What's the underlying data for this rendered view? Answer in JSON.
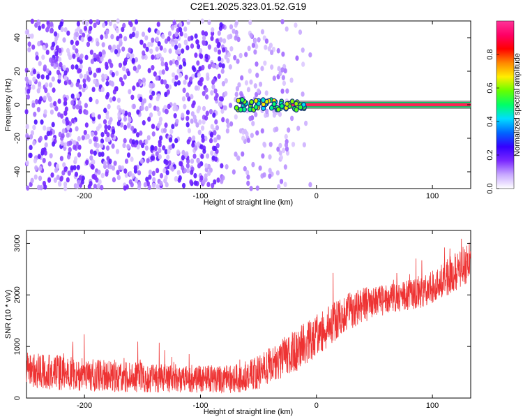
{
  "chart_data": [
    {
      "type": "heatmap",
      "title": "C2E1.2025.323.01.52.G19",
      "xlabel": "Height of straight line (km)",
      "ylabel": "Frequency (Hz)",
      "xlim": [
        -250,
        133
      ],
      "ylim": [
        -50,
        50
      ],
      "xticks": [
        -200,
        -100,
        0,
        100
      ],
      "yticks": [
        -40,
        -20,
        0,
        20,
        40
      ],
      "colorbar": {
        "label": "Normalized spectral amplitude",
        "range": [
          0,
          1
        ],
        "ticks": [
          "0.0",
          "0.2",
          "0.4",
          "0.6",
          "0.8"
        ],
        "colors": [
          "#ffffff",
          "#c8a8ff",
          "#7a28ff",
          "#3300ff",
          "#0066ff",
          "#00ddff",
          "#00ff66",
          "#66ff00",
          "#ffee00",
          "#ff8800",
          "#ff0000",
          "#ff0066",
          "#ff3399"
        ]
      },
      "features": {
        "noise_region_x": [
          -250,
          -25
        ],
        "noise_color_value": 0.15,
        "signal_line": {
          "x": [
            -70,
            133
          ],
          "frequency": 0,
          "value": 0.95
        },
        "transition_region_x": [
          -70,
          -25
        ]
      },
      "grid": false
    },
    {
      "type": "line",
      "xlabel": "Height of straight line (km)",
      "ylabel": "SNR (10 * v/v)",
      "xlim": [
        -250,
        133
      ],
      "ylim": [
        0,
        3250
      ],
      "xticks": [
        -200,
        -100,
        0,
        100
      ],
      "yticks": [
        0,
        1000,
        2000,
        3000
      ],
      "series": [
        {
          "color": "#ee3333",
          "x": [
            -250,
            -225,
            -200,
            -175,
            -150,
            -125,
            -100,
            -85,
            -70,
            -60,
            -50,
            -40,
            -30,
            -20,
            -10,
            0,
            10,
            20,
            30,
            40,
            50,
            60,
            70,
            80,
            90,
            100,
            110,
            120,
            133
          ],
          "values": [
            550,
            500,
            450,
            420,
            400,
            380,
            370,
            360,
            380,
            420,
            500,
            620,
            760,
            900,
            1050,
            1200,
            1380,
            1560,
            1700,
            1800,
            1870,
            1920,
            1960,
            2000,
            2050,
            2150,
            2300,
            2450,
            2650
          ],
          "spread": [
            350,
            340,
            320,
            300,
            290,
            280,
            270,
            270,
            280,
            300,
            330,
            360,
            400,
            420,
            420,
            420,
            400,
            380,
            360,
            340,
            320,
            300,
            290,
            290,
            300,
            320,
            360,
            380,
            400
          ]
        }
      ],
      "grid": false
    }
  ]
}
